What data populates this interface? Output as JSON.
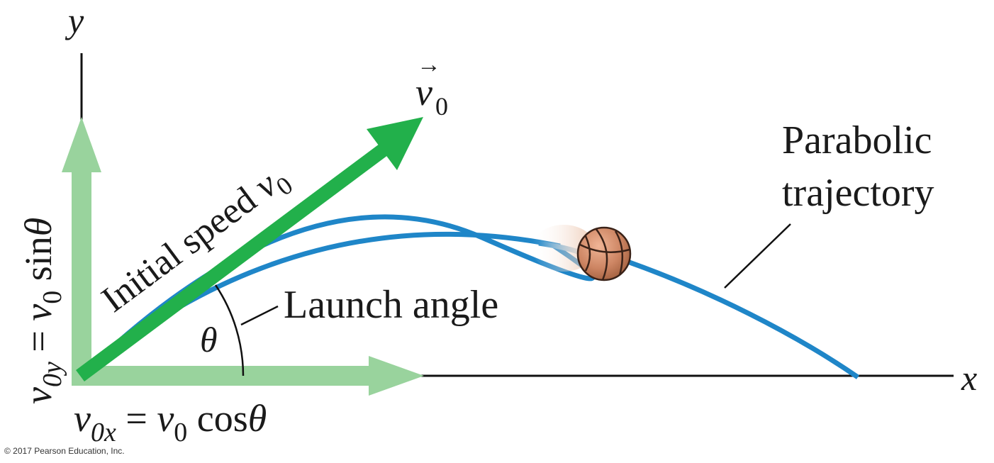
{
  "axes": {
    "x_label": "x",
    "y_label": "y"
  },
  "vectors": {
    "v0_symbol": "v",
    "v0_subscript": "0",
    "v0_arrow_glyph": "→"
  },
  "labels": {
    "initial_speed_text": "Initial speed ",
    "initial_speed_symbol": "v",
    "initial_speed_subscript": "0",
    "launch_angle": "Launch angle",
    "theta": "θ",
    "parabolic_line1": "Parabolic",
    "parabolic_line2": "trajectory"
  },
  "components": {
    "vy_v": "v",
    "vy_sub": "0y",
    "vy_eq": " = ",
    "vy_v0": "v",
    "vy_v0_sub": "0",
    "vy_func": " sin",
    "vy_theta": "θ",
    "vx_v": "v",
    "vx_sub": "0x",
    "vx_eq": " = ",
    "vx_v0": "v",
    "vx_v0_sub": "0",
    "vx_func": " cos",
    "vx_theta": "θ"
  },
  "copyright": "© 2017 Pearson Education, Inc.",
  "colors": {
    "velocity_vector": "#22b04b",
    "component_vectors": "#99d39d",
    "trajectory": "#1f86c8",
    "axes": "#111111",
    "ball": "#c8805d"
  }
}
